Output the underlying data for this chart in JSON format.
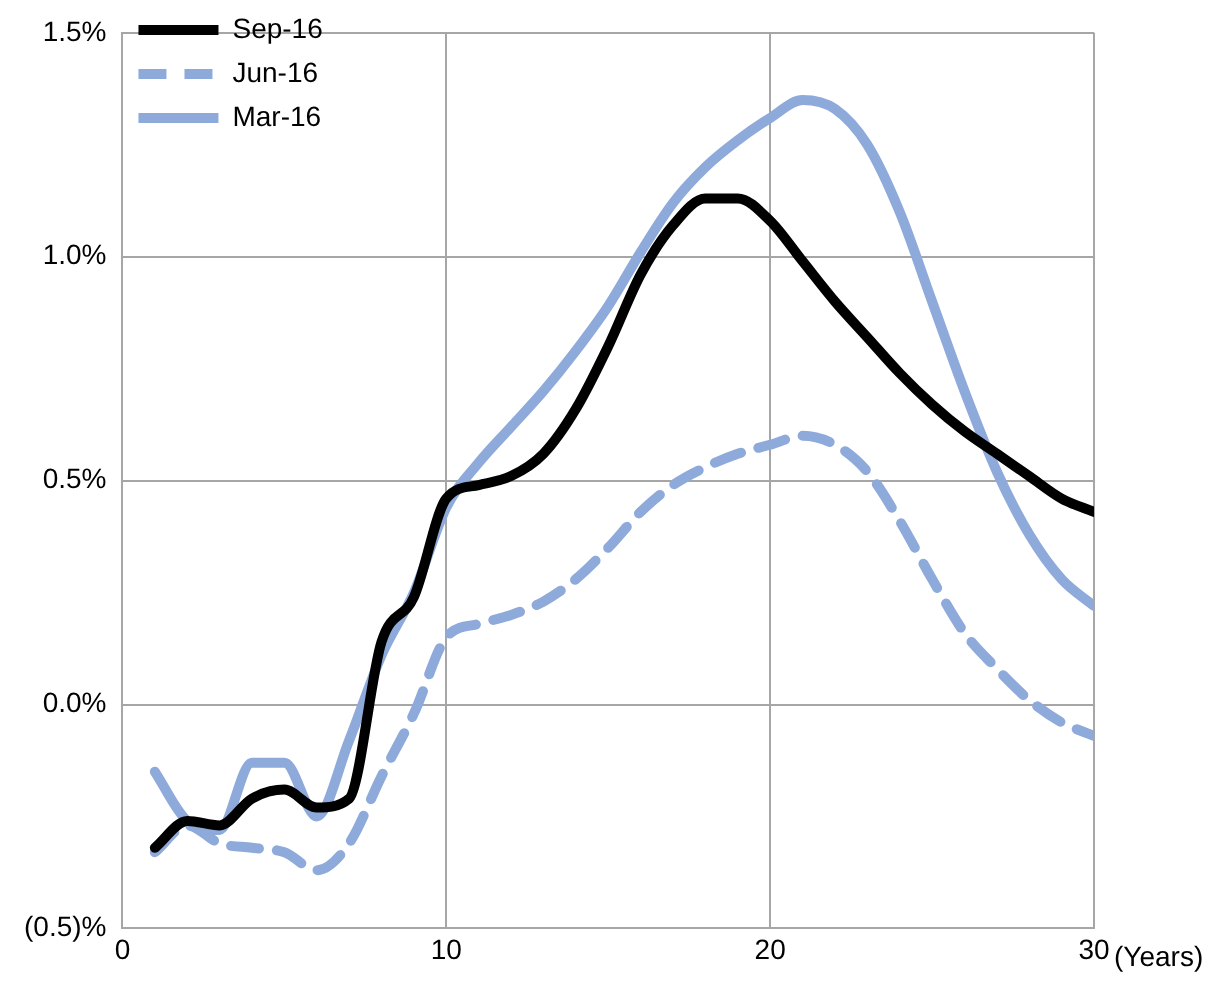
{
  "chart_data": {
    "type": "line",
    "xlabel": "(Years)",
    "x": [
      1,
      2,
      3,
      4,
      5,
      6,
      7,
      8,
      9,
      10,
      11,
      12,
      13,
      14,
      15,
      16,
      17,
      18,
      19,
      20,
      21,
      22,
      23,
      24,
      25,
      26,
      27,
      28,
      29,
      30
    ],
    "series": [
      {
        "name": "Sep-16",
        "color": "#000000",
        "line_style": "solid",
        "values": [
          -0.32,
          -0.26,
          -0.27,
          -0.21,
          -0.19,
          -0.23,
          -0.21,
          0.14,
          0.24,
          0.46,
          0.49,
          0.51,
          0.56,
          0.66,
          0.8,
          0.96,
          1.07,
          1.13,
          1.13,
          1.08,
          0.99,
          0.9,
          0.82,
          0.74,
          0.67,
          0.61,
          0.56,
          0.51,
          0.46,
          0.43
        ]
      },
      {
        "name": "Jun-16",
        "color": "#8eaadb",
        "line_style": "dashed",
        "values": [
          -0.33,
          -0.27,
          -0.31,
          -0.32,
          -0.33,
          -0.37,
          -0.31,
          -0.16,
          -0.02,
          0.15,
          0.18,
          0.2,
          0.23,
          0.28,
          0.35,
          0.43,
          0.49,
          0.53,
          0.56,
          0.58,
          0.6,
          0.58,
          0.52,
          0.41,
          0.28,
          0.16,
          0.08,
          0.01,
          -0.04,
          -0.07
        ]
      },
      {
        "name": "Mar-16",
        "color": "#8eaadb",
        "line_style": "solid",
        "values": [
          -0.15,
          -0.26,
          -0.28,
          -0.13,
          -0.13,
          -0.25,
          -0.08,
          0.11,
          0.25,
          0.44,
          0.54,
          0.62,
          0.7,
          0.79,
          0.89,
          1.01,
          1.12,
          1.2,
          1.26,
          1.31,
          1.35,
          1.33,
          1.25,
          1.1,
          0.9,
          0.7,
          0.52,
          0.38,
          0.28,
          0.22
        ]
      }
    ],
    "xlim": [
      0,
      30
    ],
    "xticks": [
      0,
      10,
      20,
      30
    ],
    "ylim": [
      -0.5,
      1.5
    ],
    "yticks": [
      {
        "value": -0.5,
        "label": "(0.5)%"
      },
      {
        "value": 0,
        "label": "0.0%"
      },
      {
        "value": 0.5,
        "label": "0.5%"
      },
      {
        "value": 1,
        "label": "1.0%"
      },
      {
        "value": 1.5,
        "label": "1.5%"
      }
    ],
    "grid": true,
    "legend": "top left",
    "marker": "none"
  }
}
